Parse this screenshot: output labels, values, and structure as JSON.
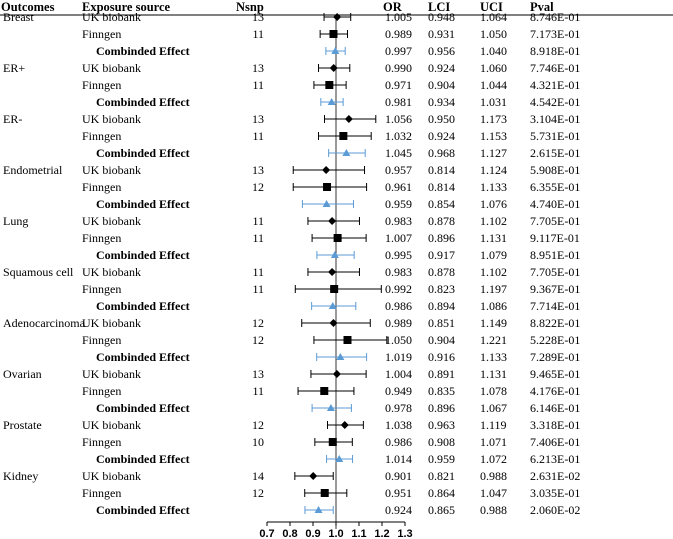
{
  "chart_data": {
    "type": "forest",
    "headers": [
      "Outcomes",
      "Exposure source",
      "Nsnp",
      "OR",
      "LCI",
      "UCI",
      "Pval"
    ],
    "xlim": [
      0.7,
      1.3
    ],
    "xticks": [
      "0.7",
      "0.8",
      "0.9",
      "1.0",
      "1.1",
      "1.2",
      "1.3"
    ],
    "reference_line": 1.0,
    "colors": {
      "estimate": "#000000",
      "combined": "#5b9bd5",
      "reference": "#000000"
    },
    "groups": [
      {
        "outcome": "Breast",
        "rows": [
          {
            "source": "UK biobank",
            "nsnp": "13",
            "or_text": "1.005",
            "lci_text": "0.948",
            "uci_text": "1.064",
            "pval": "8.746E-01",
            "or": 1.005,
            "lci": 0.948,
            "uci": 1.064,
            "marker": "diamond"
          },
          {
            "source": "Finngen",
            "nsnp": "11",
            "or_text": "0.989",
            "lci_text": "0.931",
            "uci_text": "1.050",
            "pval": "7.173E-01",
            "or": 0.989,
            "lci": 0.931,
            "uci": 1.05,
            "marker": "square"
          },
          {
            "source": "Combinded Effect",
            "nsnp": "",
            "or_text": "0.997",
            "lci_text": "0.956",
            "uci_text": "1.040",
            "pval": "8.918E-01",
            "or": 0.997,
            "lci": 0.956,
            "uci": 1.04,
            "marker": "triangle"
          }
        ]
      },
      {
        "outcome": "ER+",
        "rows": [
          {
            "source": "UK biobank",
            "nsnp": "13",
            "or_text": "0.990",
            "lci_text": "0.924",
            "uci_text": "1.060",
            "pval": "7.746E-01",
            "or": 0.99,
            "lci": 0.924,
            "uci": 1.06,
            "marker": "diamond"
          },
          {
            "source": "Finngen",
            "nsnp": "11",
            "or_text": "0.971",
            "lci_text": "0.904",
            "uci_text": "1.044",
            "pval": "4.321E-01",
            "or": 0.971,
            "lci": 0.904,
            "uci": 1.044,
            "marker": "square"
          },
          {
            "source": "Combinded Effect",
            "nsnp": "",
            "or_text": "0.981",
            "lci_text": "0.934",
            "uci_text": "1.031",
            "pval": "4.542E-01",
            "or": 0.981,
            "lci": 0.934,
            "uci": 1.031,
            "marker": "triangle"
          }
        ]
      },
      {
        "outcome": "ER-",
        "rows": [
          {
            "source": "UK biobank",
            "nsnp": "13",
            "or_text": "1.056",
            "lci_text": "0.950",
            "uci_text": "1.173",
            "pval": "3.104E-01",
            "or": 1.056,
            "lci": 0.95,
            "uci": 1.173,
            "marker": "diamond"
          },
          {
            "source": "Finngen",
            "nsnp": "11",
            "or_text": "1.032",
            "lci_text": "0.924",
            "uci_text": "1.153",
            "pval": "5.731E-01",
            "or": 1.032,
            "lci": 0.924,
            "uci": 1.153,
            "marker": "square"
          },
          {
            "source": "Combinded Effect",
            "nsnp": "",
            "or_text": "1.045",
            "lci_text": "0.968",
            "uci_text": "1.127",
            "pval": "2.615E-01",
            "or": 1.045,
            "lci": 0.968,
            "uci": 1.127,
            "marker": "triangle"
          }
        ]
      },
      {
        "outcome": "Endometrial",
        "rows": [
          {
            "source": "UK biobank",
            "nsnp": "13",
            "or_text": "0.957",
            "lci_text": "0.814",
            "uci_text": "1.124",
            "pval": "5.908E-01",
            "or": 0.957,
            "lci": 0.814,
            "uci": 1.124,
            "marker": "diamond"
          },
          {
            "source": "Finngen",
            "nsnp": "12",
            "or_text": "0.961",
            "lci_text": "0.814",
            "uci_text": "1.133",
            "pval": "6.355E-01",
            "or": 0.961,
            "lci": 0.814,
            "uci": 1.133,
            "marker": "square"
          },
          {
            "source": "Combinded Effect",
            "nsnp": "",
            "or_text": "0.959",
            "lci_text": "0.854",
            "uci_text": "1.076",
            "pval": "4.740E-01",
            "or": 0.959,
            "lci": 0.854,
            "uci": 1.076,
            "marker": "triangle"
          }
        ]
      },
      {
        "outcome": "Lung",
        "rows": [
          {
            "source": "UK biobank",
            "nsnp": "11",
            "or_text": "0.983",
            "lci_text": "0.878",
            "uci_text": "1.102",
            "pval": "7.705E-01",
            "or": 0.983,
            "lci": 0.878,
            "uci": 1.102,
            "marker": "diamond"
          },
          {
            "source": "Finngen",
            "nsnp": "11",
            "or_text": "1.007",
            "lci_text": "0.896",
            "uci_text": "1.131",
            "pval": "9.117E-01",
            "or": 1.007,
            "lci": 0.896,
            "uci": 1.131,
            "marker": "square"
          },
          {
            "source": "Combinded Effect",
            "nsnp": "",
            "or_text": "0.995",
            "lci_text": "0.917",
            "uci_text": "1.079",
            "pval": "8.951E-01",
            "or": 0.995,
            "lci": 0.917,
            "uci": 1.079,
            "marker": "triangle"
          }
        ]
      },
      {
        "outcome": "Squamous cell",
        "rows": [
          {
            "source": "UK biobank",
            "nsnp": "11",
            "or_text": "0.983",
            "lci_text": "0.878",
            "uci_text": "1.102",
            "pval": "7.705E-01",
            "or": 0.983,
            "lci": 0.878,
            "uci": 1.102,
            "marker": "diamond"
          },
          {
            "source": "Finngen",
            "nsnp": "11",
            "or_text": "0.992",
            "lci_text": "0.823",
            "uci_text": "1.197",
            "pval": "9.367E-01",
            "or": 0.992,
            "lci": 0.823,
            "uci": 1.197,
            "marker": "square"
          },
          {
            "source": "Combinded Effect",
            "nsnp": "",
            "or_text": "0.986",
            "lci_text": "0.894",
            "uci_text": "1.086",
            "pval": "7.714E-01",
            "or": 0.986,
            "lci": 0.894,
            "uci": 1.086,
            "marker": "triangle"
          }
        ]
      },
      {
        "outcome": "Adenocarcinoma",
        "rows": [
          {
            "source": "UK biobank",
            "nsnp": "12",
            "or_text": "0.989",
            "lci_text": "0.851",
            "uci_text": "1.149",
            "pval": "8.822E-01",
            "or": 0.989,
            "lci": 0.851,
            "uci": 1.149,
            "marker": "diamond"
          },
          {
            "source": "Finngen",
            "nsnp": "12",
            "or_text": "1.050",
            "lci_text": "0.904",
            "uci_text": "1.221",
            "pval": "5.228E-01",
            "or": 1.05,
            "lci": 0.904,
            "uci": 1.221,
            "marker": "square"
          },
          {
            "source": "Combinded Effect",
            "nsnp": "",
            "or_text": "1.019",
            "lci_text": "0.916",
            "uci_text": "1.133",
            "pval": "7.289E-01",
            "or": 1.019,
            "lci": 0.916,
            "uci": 1.133,
            "marker": "triangle"
          }
        ]
      },
      {
        "outcome": "Ovarian",
        "rows": [
          {
            "source": "UK biobank",
            "nsnp": "13",
            "or_text": "1.004",
            "lci_text": "0.891",
            "uci_text": "1.131",
            "pval": "9.465E-01",
            "or": 1.004,
            "lci": 0.891,
            "uci": 1.131,
            "marker": "diamond"
          },
          {
            "source": "Finngen",
            "nsnp": "11",
            "or_text": "0.949",
            "lci_text": "0.835",
            "uci_text": "1.078",
            "pval": "4.176E-01",
            "or": 0.949,
            "lci": 0.835,
            "uci": 1.078,
            "marker": "square"
          },
          {
            "source": "Combinded Effect",
            "nsnp": "",
            "or_text": "0.978",
            "lci_text": "0.896",
            "uci_text": "1.067",
            "pval": "6.146E-01",
            "or": 0.978,
            "lci": 0.896,
            "uci": 1.067,
            "marker": "triangle"
          }
        ]
      },
      {
        "outcome": "Prostate",
        "rows": [
          {
            "source": "UK biobank",
            "nsnp": "12",
            "or_text": "1.038",
            "lci_text": "0.963",
            "uci_text": "1.119",
            "pval": "3.318E-01",
            "or": 1.038,
            "lci": 0.963,
            "uci": 1.119,
            "marker": "diamond"
          },
          {
            "source": "Finngen",
            "nsnp": "10",
            "or_text": "0.986",
            "lci_text": "0.908",
            "uci_text": "1.071",
            "pval": "7.406E-01",
            "or": 0.986,
            "lci": 0.908,
            "uci": 1.071,
            "marker": "square"
          },
          {
            "source": "Combinded Effect",
            "nsnp": "",
            "or_text": "1.014",
            "lci_text": "0.959",
            "uci_text": "1.072",
            "pval": "6.213E-01",
            "or": 1.014,
            "lci": 0.959,
            "uci": 1.072,
            "marker": "triangle"
          }
        ]
      },
      {
        "outcome": "Kidney",
        "rows": [
          {
            "source": "UK biobank",
            "nsnp": "14",
            "or_text": "0.901",
            "lci_text": "0.821",
            "uci_text": "0.988",
            "pval": "2.631E-02",
            "or": 0.901,
            "lci": 0.821,
            "uci": 0.988,
            "marker": "diamond"
          },
          {
            "source": "Finngen",
            "nsnp": "12",
            "or_text": "0.951",
            "lci_text": "0.864",
            "uci_text": "1.047",
            "pval": "3.035E-01",
            "or": 0.951,
            "lci": 0.864,
            "uci": 1.047,
            "marker": "square"
          },
          {
            "source": "Combinded Effect",
            "nsnp": "",
            "or_text": "0.924",
            "lci_text": "0.865",
            "uci_text": "0.988",
            "pval": "2.060E-02",
            "or": 0.924,
            "lci": 0.865,
            "uci": 0.988,
            "marker": "triangle"
          }
        ]
      }
    ]
  }
}
